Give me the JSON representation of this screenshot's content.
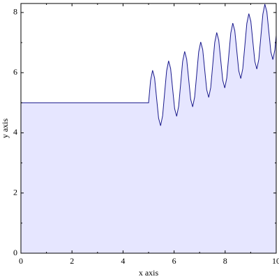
{
  "chart_data": {
    "type": "area",
    "x_label": "x axis",
    "y_label": "y axis",
    "x": [
      0,
      5,
      5.079,
      5.157,
      5.236,
      5.314,
      5.393,
      5.471,
      5.55,
      5.628,
      5.707,
      5.785,
      5.864,
      5.942,
      6.021,
      6.1,
      6.178,
      6.257,
      6.335,
      6.414,
      6.492,
      6.571,
      6.649,
      6.728,
      6.806,
      6.885,
      6.963,
      7.042,
      7.121,
      7.199,
      7.278,
      7.356,
      7.435,
      7.513,
      7.592,
      7.67,
      7.749,
      7.827,
      7.906,
      7.985,
      8.063,
      8.142,
      8.22,
      8.299,
      8.377,
      8.456,
      8.534,
      8.613,
      8.691,
      8.77,
      8.848,
      8.927,
      9.006,
      9.084,
      9.163,
      9.241,
      9.32,
      9.398,
      9.477,
      9.555,
      9.634,
      9.712,
      9.791,
      9.87,
      9.948,
      10
    ],
    "y": [
      5,
      5,
      5.746,
      6.079,
      5.825,
      5.157,
      4.489,
      4.236,
      4.568,
      5.314,
      6.06,
      6.393,
      6.139,
      5.471,
      4.804,
      4.55,
      4.882,
      5.628,
      6.375,
      6.707,
      6.453,
      5.785,
      5.118,
      4.864,
      5.196,
      5.942,
      6.689,
      7.021,
      6.767,
      6.1,
      5.432,
      5.178,
      5.51,
      6.257,
      7.003,
      7.335,
      7.081,
      6.414,
      5.746,
      5.492,
      5.825,
      6.571,
      7.317,
      7.649,
      7.396,
      6.728,
      6.06,
      5.806,
      6.139,
      6.885,
      7.631,
      7.963,
      7.71,
      7.042,
      6.374,
      6.121,
      6.453,
      7.199,
      7.945,
      8.278,
      8.024,
      7.356,
      6.689,
      6.435,
      6.767,
      7.238
    ],
    "color": "#1a1a8c",
    "fill_color": "#e6e6ff",
    "xlim": [
      0,
      10
    ],
    "ylim": [
      0,
      8.3
    ],
    "xticks": [
      0,
      2,
      4,
      6,
      8,
      10
    ],
    "yticks": [
      0,
      2,
      4,
      6,
      8
    ],
    "xminorticks": [
      1,
      3,
      5,
      7,
      9
    ],
    "yminorticks": [
      1,
      3,
      5,
      7
    ]
  }
}
